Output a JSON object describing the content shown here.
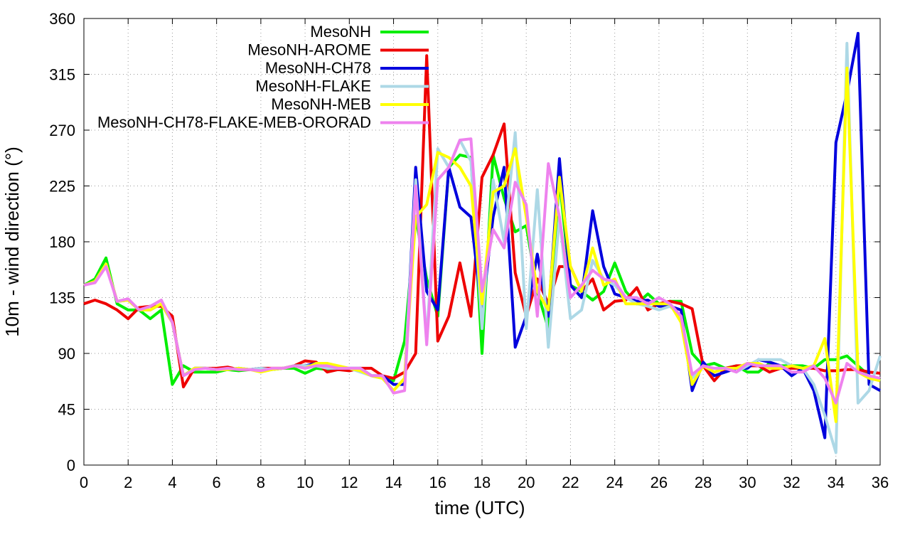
{
  "chart_data": {
    "type": "line",
    "xlabel": "time (UTC)",
    "ylabel": "10m - wind direction (°)",
    "xlim": [
      0,
      36
    ],
    "ylim": [
      0,
      360
    ],
    "xticks": [
      0,
      2,
      4,
      6,
      8,
      10,
      12,
      14,
      16,
      18,
      20,
      22,
      24,
      26,
      28,
      30,
      32,
      34,
      36
    ],
    "yticks": [
      0,
      45,
      90,
      135,
      180,
      225,
      270,
      315,
      360
    ],
    "grid": true,
    "legend": "top left",
    "x": [
      0,
      0.5,
      1,
      1.5,
      2,
      2.5,
      3,
      3.5,
      4,
      4.5,
      5,
      5.5,
      6,
      6.5,
      7,
      7.5,
      8,
      8.5,
      9,
      9.5,
      10,
      10.5,
      11,
      11.5,
      12,
      12.5,
      13,
      13.5,
      14,
      14.5,
      15,
      15.5,
      16,
      16.5,
      17,
      17.5,
      18,
      18.5,
      19,
      19.5,
      20,
      20.5,
      21,
      21.5,
      22,
      22.5,
      23,
      23.5,
      24,
      24.5,
      25,
      25.5,
      26,
      26.5,
      27,
      27.5,
      28,
      28.5,
      29,
      29.5,
      30,
      30.5,
      31,
      31.5,
      32,
      32.5,
      33,
      33.5,
      34,
      34.5,
      35,
      35.5,
      36
    ],
    "series": [
      {
        "name": "MesoNH",
        "color": "#00ee00",
        "values": [
          145,
          150,
          167,
          130,
          125,
          125,
          118,
          125,
          65,
          80,
          75,
          75,
          75,
          77,
          76,
          77,
          77,
          77,
          78,
          78,
          74,
          78,
          77,
          77,
          77,
          78,
          72,
          70,
          68,
          100,
          200,
          150,
          120,
          240,
          250,
          248,
          90,
          250,
          215,
          188,
          193,
          140,
          110,
          230,
          145,
          140,
          133,
          140,
          163,
          140,
          130,
          138,
          130,
          132,
          132,
          90,
          80,
          82,
          78,
          80,
          75,
          75,
          82,
          80,
          80,
          80,
          78,
          85,
          85,
          88,
          80,
          72,
          68
        ]
      },
      {
        "name": "MesoNH-AROME",
        "color": "#ee0000",
        "values": [
          130,
          133,
          130,
          125,
          118,
          127,
          128,
          128,
          120,
          63,
          78,
          78,
          78,
          79,
          77,
          77,
          78,
          78,
          78,
          80,
          84,
          83,
          75,
          77,
          76,
          78,
          78,
          72,
          70,
          75,
          90,
          330,
          100,
          120,
          163,
          120,
          232,
          250,
          275,
          155,
          120,
          150,
          130,
          160,
          160,
          140,
          150,
          125,
          132,
          133,
          143,
          125,
          130,
          132,
          130,
          126,
          80,
          68,
          78,
          80,
          80,
          80,
          75,
          78,
          78,
          78,
          78,
          76,
          76,
          77,
          77,
          75,
          74
        ]
      },
      {
        "name": "MesoNH-CH78",
        "color": "#0000dd",
        "values": [
          145,
          148,
          162,
          132,
          133,
          125,
          125,
          130,
          115,
          72,
          78,
          78,
          77,
          77,
          78,
          77,
          78,
          77,
          78,
          80,
          80,
          82,
          78,
          78,
          78,
          78,
          72,
          72,
          65,
          65,
          240,
          140,
          125,
          240,
          208,
          200,
          123,
          200,
          240,
          95,
          120,
          170,
          120,
          247,
          145,
          135,
          205,
          160,
          138,
          135,
          132,
          133,
          128,
          128,
          125,
          60,
          83,
          72,
          75,
          78,
          78,
          85,
          83,
          80,
          72,
          78,
          60,
          22,
          260,
          300,
          348,
          65,
          60
        ]
      },
      {
        "name": "MesoNH-FLAKE",
        "color": "#add8e6",
        "values": [
          145,
          148,
          162,
          132,
          133,
          125,
          125,
          130,
          115,
          72,
          78,
          78,
          77,
          77,
          78,
          77,
          78,
          77,
          78,
          80,
          80,
          80,
          78,
          78,
          78,
          75,
          72,
          70,
          60,
          70,
          230,
          100,
          255,
          240,
          262,
          245,
          110,
          230,
          180,
          268,
          110,
          222,
          95,
          200,
          118,
          125,
          165,
          150,
          145,
          135,
          130,
          128,
          125,
          128,
          120,
          70,
          80,
          75,
          78,
          75,
          80,
          85,
          85,
          85,
          80,
          78,
          65,
          40,
          10,
          340,
          50,
          60,
          88
        ]
      },
      {
        "name": "MesoNH-MEB",
        "color": "#ffff00",
        "values": [
          145,
          148,
          162,
          132,
          133,
          125,
          125,
          130,
          115,
          72,
          78,
          78,
          77,
          77,
          78,
          77,
          75,
          77,
          78,
          80,
          78,
          82,
          82,
          80,
          78,
          76,
          72,
          70,
          60,
          70,
          200,
          210,
          252,
          248,
          240,
          225,
          130,
          220,
          225,
          255,
          200,
          140,
          125,
          232,
          160,
          140,
          175,
          145,
          150,
          130,
          130,
          130,
          130,
          130,
          115,
          65,
          80,
          75,
          78,
          78,
          82,
          82,
          78,
          78,
          80,
          78,
          80,
          102,
          35,
          320,
          75,
          70,
          68
        ]
      },
      {
        "name": "MesoNH-CH78-FLAKE-MEB-ORORAD",
        "color": "#ee82ee",
        "values": [
          145,
          147,
          160,
          132,
          134,
          125,
          128,
          133,
          115,
          72,
          77,
          78,
          77,
          78,
          77,
          77,
          76,
          78,
          78,
          80,
          78,
          80,
          80,
          78,
          78,
          78,
          72,
          72,
          58,
          60,
          225,
          97,
          230,
          240,
          262,
          263,
          140,
          190,
          175,
          228,
          210,
          120,
          243,
          200,
          135,
          145,
          157,
          150,
          148,
          135,
          135,
          130,
          135,
          130,
          120,
          73,
          80,
          78,
          78,
          75,
          82,
          80,
          80,
          80,
          75,
          75,
          80,
          70,
          50,
          82,
          75,
          72,
          70
        ]
      }
    ]
  }
}
